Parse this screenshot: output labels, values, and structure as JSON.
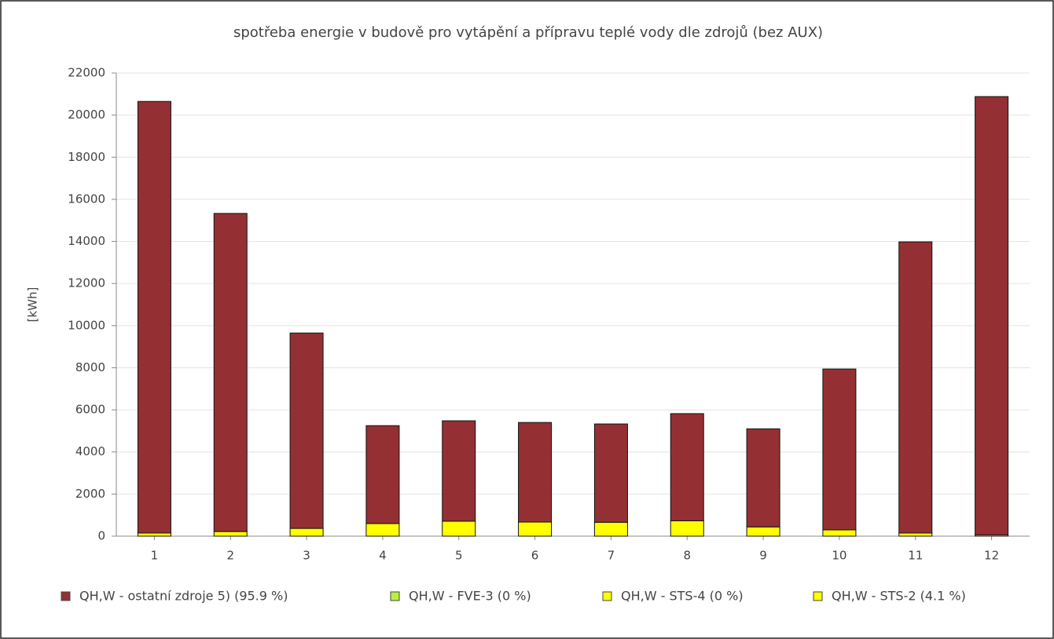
{
  "chart_data": {
    "type": "stacked_bar",
    "title": "spotřeba energie v budově pro vytápění a přípravu teplé vody dle zdrojů (bez AUX)",
    "y_label": "[kWh]",
    "categories": [
      "1",
      "2",
      "3",
      "4",
      "5",
      "6",
      "7",
      "8",
      "9",
      "10",
      "11",
      "12"
    ],
    "series": [
      {
        "name": "QH,W - ostatní zdroje 5) (95.9 %)",
        "color": "#943034",
        "values": [
          20500,
          15110,
          9280,
          4650,
          4770,
          4730,
          4670,
          5090,
          4660,
          7640,
          13830,
          20820
        ]
      },
      {
        "name": "QH,W - FVE-3 (0 %)",
        "color": "#b8f040",
        "values": [
          0,
          0,
          0,
          0,
          0,
          0,
          0,
          0,
          0,
          0,
          0,
          0
        ]
      },
      {
        "name": "QH,W - STS-4 (0 %)",
        "color": "#ffff00",
        "values": [
          0,
          0,
          0,
          0,
          0,
          0,
          0,
          0,
          0,
          0,
          0,
          0
        ]
      },
      {
        "name": "QH,W - STS-2 (4.1 %)",
        "color": "#ffff00",
        "values": [
          150,
          220,
          370,
          600,
          710,
          670,
          660,
          730,
          440,
          300,
          150,
          60
        ]
      }
    ],
    "ylim": [
      0,
      22000
    ],
    "yticks": [
      0,
      2000,
      4000,
      6000,
      8000,
      10000,
      12000,
      14000,
      16000,
      18000,
      20000,
      22000
    ],
    "grid": true
  }
}
